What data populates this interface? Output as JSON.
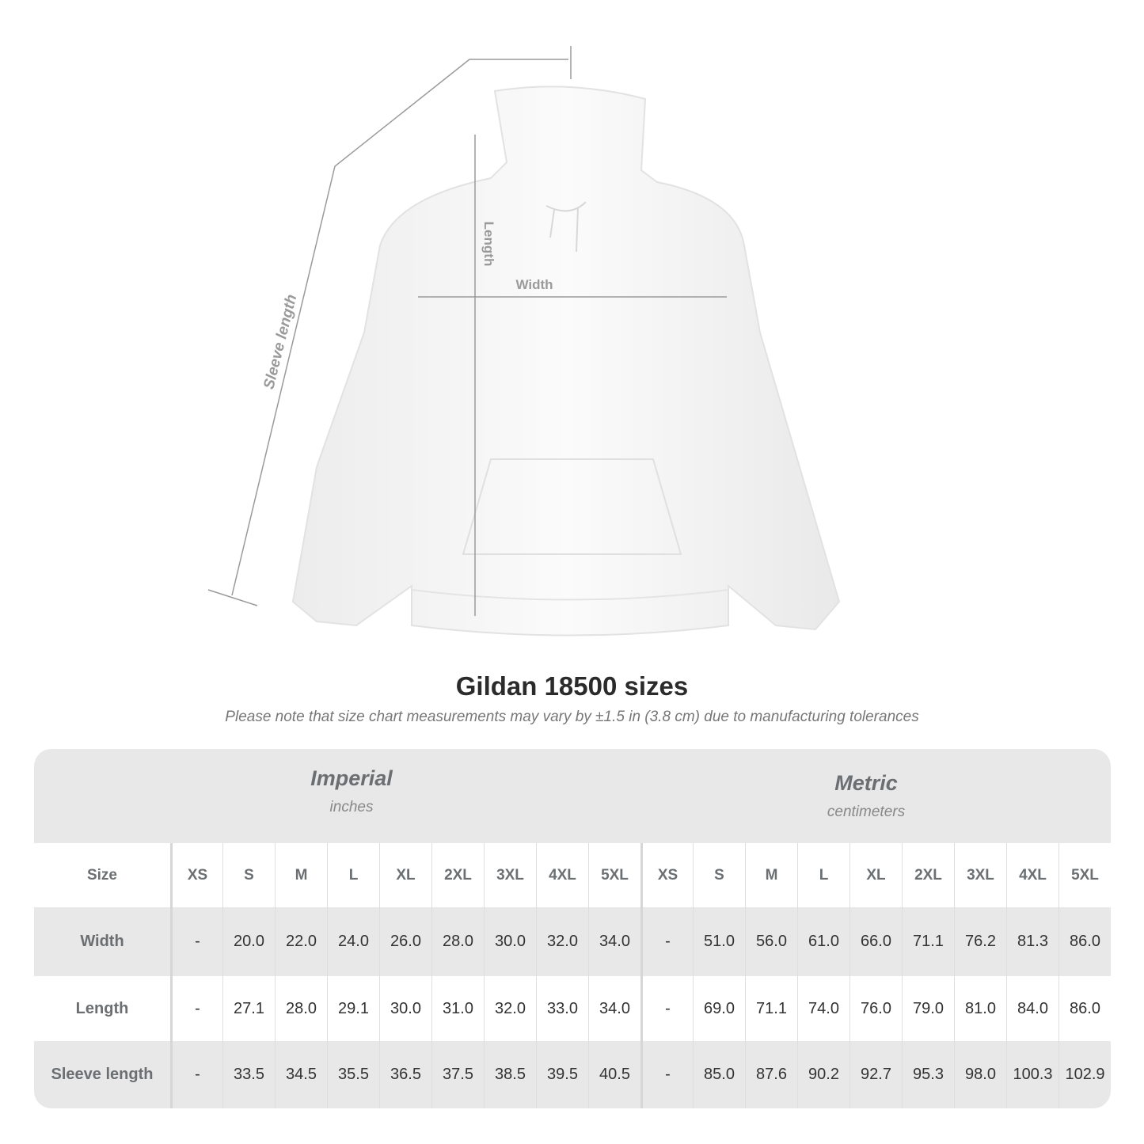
{
  "diagram": {
    "labels": {
      "sleeve": "Sleeve length",
      "length": "Length",
      "width": "Width"
    }
  },
  "title": "Gildan 18500 sizes",
  "note": "Please note that size chart measurements may vary by ±1.5 in (3.8 cm) due to manufacturing tolerances",
  "units": {
    "imperial": {
      "name": "Imperial",
      "sub": "inches"
    },
    "metric": {
      "name": "Metric",
      "sub": "centimeters"
    }
  },
  "table": {
    "header": [
      "Size",
      "XS",
      "S",
      "M",
      "L",
      "XL",
      "2XL",
      "3XL",
      "4XL",
      "5XL",
      "XS",
      "S",
      "M",
      "L",
      "XL",
      "2XL",
      "3XL",
      "4XL",
      "5XL"
    ],
    "rows": [
      [
        "Width",
        "-",
        "20.0",
        "22.0",
        "24.0",
        "26.0",
        "28.0",
        "30.0",
        "32.0",
        "34.0",
        "-",
        "51.0",
        "56.0",
        "61.0",
        "66.0",
        "71.1",
        "76.2",
        "81.3",
        "86.0"
      ],
      [
        "Length",
        "-",
        "27.1",
        "28.0",
        "29.1",
        "30.0",
        "31.0",
        "32.0",
        "33.0",
        "34.0",
        "-",
        "69.0",
        "71.1",
        "74.0",
        "76.0",
        "79.0",
        "81.0",
        "84.0",
        "86.0"
      ],
      [
        "Sleeve length",
        "-",
        "33.5",
        "34.5",
        "35.5",
        "36.5",
        "37.5",
        "38.5",
        "39.5",
        "40.5",
        "-",
        "85.0",
        "87.6",
        "90.2",
        "92.7",
        "95.3",
        "98.0",
        "100.3",
        "102.9"
      ]
    ]
  },
  "colors": {
    "band": "#e8e8e8",
    "label": "#6b6f72",
    "measure_line": "#9a9a9a"
  }
}
